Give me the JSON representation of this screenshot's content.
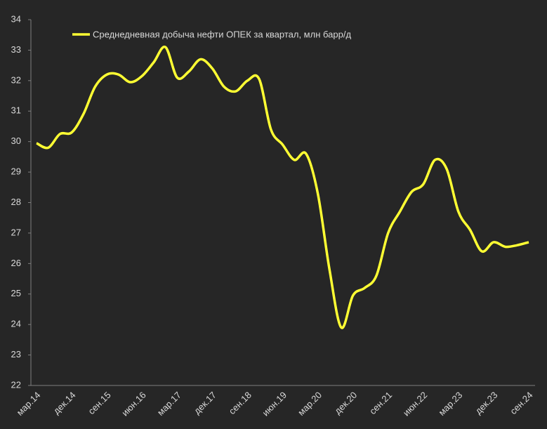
{
  "chart_data": {
    "type": "line",
    "categories": [
      "мар.14",
      null,
      null,
      "дек.14",
      null,
      null,
      "сен.15",
      null,
      null,
      "июн.16",
      null,
      null,
      "мар.17",
      null,
      null,
      "дек.17",
      null,
      null,
      "сен.18",
      null,
      null,
      "июн.19",
      null,
      null,
      "мар.20",
      null,
      null,
      "дек.20",
      null,
      null,
      "сен.21",
      null,
      null,
      "июн.22",
      null,
      null,
      "мар.23",
      null,
      null,
      "дек.23",
      null,
      null,
      "сен.24"
    ],
    "series": [
      {
        "name": "Среднедневная добыча нефти ОПЕК за квартал, млн барр/д",
        "color": "#ffff33",
        "values": [
          29.95,
          29.8,
          30.25,
          30.3,
          30.9,
          31.8,
          32.2,
          32.2,
          31.95,
          32.15,
          32.6,
          33.1,
          32.1,
          32.3,
          32.7,
          32.4,
          31.8,
          31.65,
          32.0,
          32.05,
          30.4,
          29.9,
          29.4,
          29.6,
          28.3,
          25.8,
          23.9,
          24.95,
          25.2,
          25.6,
          27.0,
          27.7,
          28.35,
          28.6,
          29.4,
          29.1,
          27.7,
          27.1,
          26.4,
          26.7,
          26.55,
          26.6,
          26.7
        ]
      }
    ],
    "ylim": [
      22,
      34
    ],
    "yticks": [
      22,
      23,
      24,
      25,
      26,
      27,
      28,
      29,
      30,
      31,
      32,
      33,
      34
    ],
    "grid": false,
    "legend": "top"
  }
}
